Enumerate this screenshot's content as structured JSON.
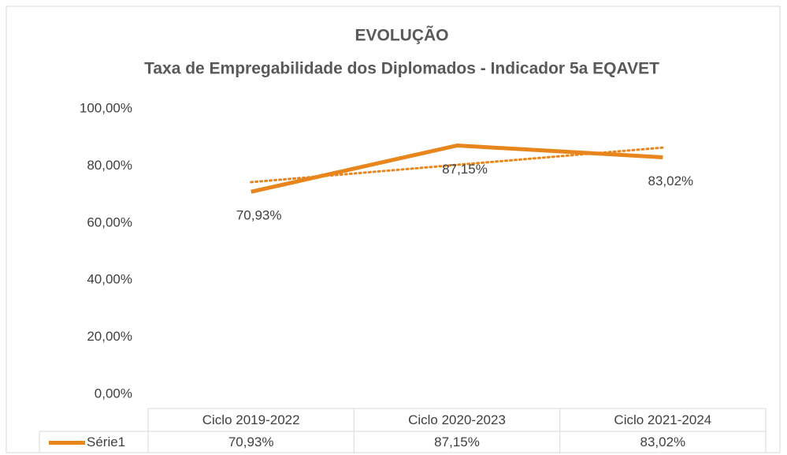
{
  "chart_data": {
    "type": "line",
    "title": "EVOLUÇÃO",
    "subtitle": "Taxa de Empregabilidade dos Diplomados - Indicador 5a EQAVET",
    "categories": [
      "Ciclo 2019-2022",
      "Ciclo 2020-2023",
      "Ciclo 2021-2024"
    ],
    "series": [
      {
        "name": "Série1",
        "color": "#e8851c",
        "values": [
          70.93,
          87.15,
          83.02
        ],
        "value_labels": [
          "70,93%",
          "87,15%",
          "83,02%"
        ]
      }
    ],
    "ylim": [
      0,
      100
    ],
    "yticks": [
      {
        "value": 0,
        "label": "0,00%"
      },
      {
        "value": 20,
        "label": "20,00%"
      },
      {
        "value": 40,
        "label": "40,00%"
      },
      {
        "value": 60,
        "label": "60,00%"
      },
      {
        "value": 80,
        "label": "80,00%"
      },
      {
        "value": 100,
        "label": "100,00%"
      }
    ],
    "trendline": "linear",
    "data_table": true
  }
}
